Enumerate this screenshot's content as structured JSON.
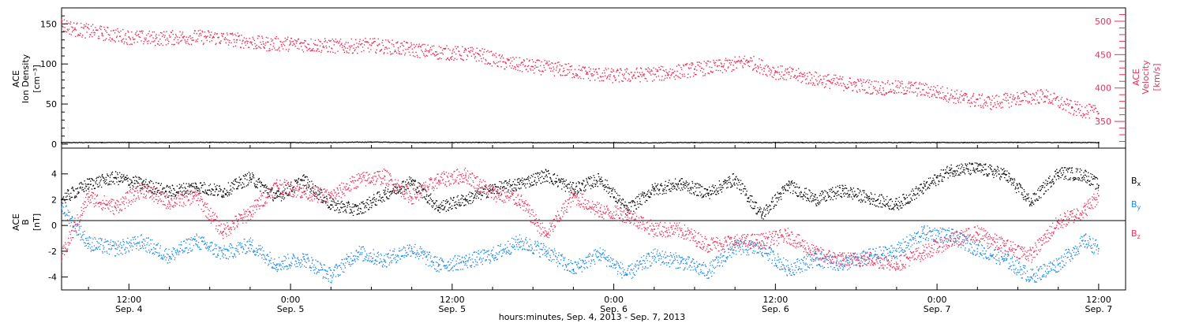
{
  "chart_data": [
    {
      "type": "scatter",
      "panel": "top",
      "x_domain_hours": [
        7,
        86
      ],
      "left_axis": {
        "title_lines": [
          "ACE",
          "Ion Density"
        ],
        "unit": "[cm⁻³]",
        "ylim": [
          -5,
          170
        ],
        "ticks": [
          0,
          50,
          100,
          150
        ]
      },
      "right_axis": {
        "title_lines": [
          "ACE",
          "Velocity"
        ],
        "unit": "[km/s]",
        "ylim": [
          310,
          520
        ],
        "ticks": [
          350,
          400,
          450,
          500
        ],
        "color": "#e8305a"
      },
      "series": [
        {
          "name": "Ion Density",
          "axis": "left",
          "color": "#000000",
          "x": [
            7,
            10,
            14,
            18,
            22,
            26,
            30,
            34,
            38,
            42,
            46,
            50,
            54,
            58,
            62,
            66,
            70,
            74,
            78,
            82,
            84
          ],
          "y": [
            1.8,
            2.0,
            1.9,
            2.1,
            2.0,
            1.8,
            2.5,
            1.9,
            2.0,
            1.8,
            1.9,
            1.6,
            1.9,
            2.0,
            1.9,
            1.8,
            2.0,
            1.9,
            2.1,
            2.0,
            2.0
          ]
        },
        {
          "name": "Velocity",
          "axis": "right",
          "color": "#e8305a",
          "x": [
            7,
            8,
            10,
            12,
            14,
            16,
            18,
            20,
            22,
            24,
            26,
            28,
            30,
            32,
            34,
            36,
            38,
            40,
            42,
            44,
            46,
            48,
            50,
            52,
            54,
            56,
            58,
            60,
            62,
            64,
            66,
            68,
            70,
            72,
            74,
            76,
            78,
            80,
            82,
            84
          ],
          "y": [
            495,
            488,
            482,
            476,
            474,
            476,
            476,
            472,
            466,
            466,
            464,
            462,
            464,
            460,
            455,
            452,
            450,
            437,
            432,
            428,
            422,
            418,
            420,
            422,
            428,
            432,
            440,
            424,
            417,
            410,
            404,
            400,
            400,
            394,
            384,
            378,
            384,
            388,
            370,
            362
          ]
        }
      ]
    },
    {
      "type": "scatter",
      "panel": "bottom",
      "x_domain_hours": [
        7,
        86
      ],
      "ylim": [
        -5,
        6
      ],
      "yticks": [
        -4,
        -2,
        0,
        2,
        4
      ],
      "axis_title_lines": [
        "ACE",
        "B"
      ],
      "axis_unit": "[nT]",
      "legend": [
        {
          "label": "B",
          "sub": "x",
          "color": "#000000"
        },
        {
          "label": "B",
          "sub": "y",
          "color": "#1e88e5"
        },
        {
          "label": "B",
          "sub": "z",
          "color": "#e8305a"
        }
      ],
      "series": [
        {
          "name": "Bx",
          "color": "#000000",
          "x": [
            7,
            9,
            11,
            13,
            15,
            17,
            19,
            21,
            23,
            25,
            27,
            29,
            31,
            33,
            35,
            37,
            39,
            41,
            43,
            45,
            47,
            49,
            51,
            53,
            55,
            57,
            59,
            61,
            63,
            65,
            67,
            69,
            71,
            73,
            75,
            77,
            79,
            81,
            83,
            84
          ],
          "y": [
            2.0,
            3.2,
            3.7,
            3.2,
            2.6,
            3.0,
            2.6,
            3.7,
            2.2,
            3.5,
            1.6,
            1.2,
            2.4,
            3.4,
            1.4,
            2.0,
            2.8,
            3.2,
            3.9,
            2.8,
            3.6,
            1.2,
            2.8,
            3.2,
            2.5,
            3.6,
            0.8,
            3.1,
            2.0,
            2.7,
            2.1,
            1.6,
            2.9,
            4.3,
            4.4,
            4.0,
            1.8,
            4.1,
            3.9,
            3.1
          ]
        },
        {
          "name": "By",
          "color": "#1e88e5",
          "x": [
            7,
            9,
            11,
            13,
            15,
            17,
            19,
            21,
            23,
            25,
            27,
            29,
            31,
            33,
            35,
            37,
            39,
            41,
            43,
            45,
            47,
            49,
            51,
            53,
            55,
            57,
            59,
            61,
            63,
            65,
            67,
            69,
            71,
            73,
            75,
            77,
            79,
            81,
            83,
            84
          ],
          "y": [
            1.5,
            -1.4,
            -1.8,
            -1.3,
            -2.4,
            -1.2,
            -2.2,
            -1.5,
            -3.0,
            -2.6,
            -3.9,
            -2.1,
            -2.7,
            -1.8,
            -3.1,
            -2.8,
            -2.3,
            -1.3,
            -2.0,
            -3.4,
            -2.2,
            -3.8,
            -2.4,
            -2.8,
            -3.6,
            -1.7,
            -1.8,
            -3.4,
            -2.6,
            -3.0,
            -2.4,
            -2.0,
            -0.6,
            -0.8,
            -1.8,
            -2.6,
            -4.0,
            -3.0,
            -1.2,
            -1.8
          ]
        },
        {
          "name": "Bz",
          "color": "#e8305a",
          "x": [
            7,
            9,
            11,
            13,
            15,
            17,
            19,
            21,
            23,
            25,
            27,
            29,
            31,
            33,
            35,
            37,
            39,
            41,
            43,
            45,
            47,
            49,
            51,
            53,
            55,
            57,
            59,
            61,
            63,
            65,
            67,
            69,
            71,
            73,
            75,
            77,
            79,
            81,
            83,
            84
          ],
          "y": [
            -2.5,
            2.2,
            1.4,
            2.8,
            1.8,
            2.3,
            -0.5,
            1.0,
            3.1,
            2.6,
            2.2,
            3.5,
            3.8,
            2.2,
            3.5,
            3.9,
            2.5,
            2.0,
            -0.8,
            2.3,
            1.1,
            0.8,
            -0.3,
            -0.4,
            -1.5,
            -1.3,
            -1.2,
            -0.8,
            -2.2,
            -2.7,
            -2.6,
            -3.0,
            -2.1,
            -1.2,
            -0.6,
            -1.6,
            -2.3,
            0.2,
            1.2,
            2.3
          ]
        }
      ]
    }
  ],
  "x_axis": {
    "title": "hours:minutes, Sep.  4, 2013 - Sep.  7, 2013",
    "ticks": [
      {
        "hour": 12,
        "time": "12:00",
        "date": "Sep. 4"
      },
      {
        "hour": 24,
        "time": "0:00",
        "date": "Sep. 5"
      },
      {
        "hour": 36,
        "time": "12:00",
        "date": "Sep. 5"
      },
      {
        "hour": 48,
        "time": "0:00",
        "date": "Sep. 6"
      },
      {
        "hour": 60,
        "time": "12:00",
        "date": "Sep. 6"
      },
      {
        "hour": 72,
        "time": "0:00",
        "date": "Sep. 7"
      },
      {
        "hour": 84,
        "time": "12:00",
        "date": "Sep. 7"
      }
    ]
  }
}
